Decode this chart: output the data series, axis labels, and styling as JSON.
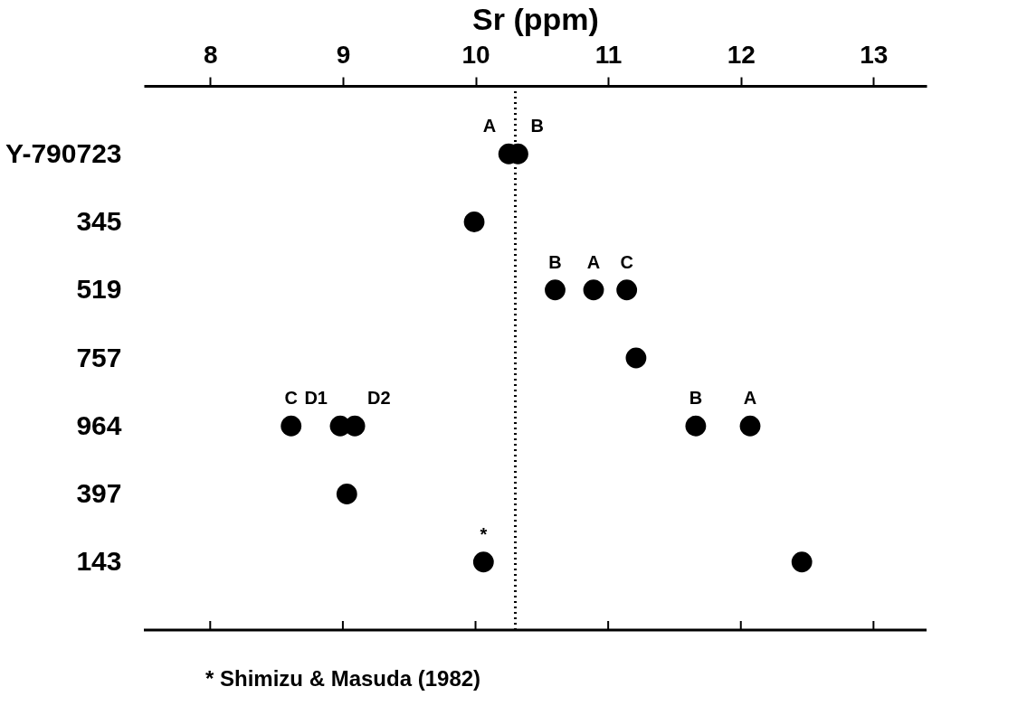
{
  "chart_data": {
    "type": "scatter",
    "orientation": "horizontal",
    "xlabel": "Sr (ppm)",
    "categories": [
      "Y-790723",
      "345",
      "519",
      "757",
      "964",
      "397",
      "143"
    ],
    "xlim": [
      7.5,
      13.4
    ],
    "xticks": [
      8,
      9,
      10,
      11,
      12,
      13
    ],
    "grid": false,
    "marker": "circle",
    "series": [
      {
        "name": "A",
        "color": "#000000",
        "values": [
          10.25,
          null,
          10.89,
          null,
          12.07,
          null,
          null
        ]
      },
      {
        "name": "B",
        "color": "#000000",
        "values": [
          10.32,
          null,
          10.6,
          null,
          11.66,
          null,
          null
        ]
      },
      {
        "name": "C",
        "color": "#000000",
        "values": [
          null,
          null,
          11.14,
          null,
          8.61,
          null,
          null
        ]
      },
      {
        "name": "D1",
        "color": "#000000",
        "values": [
          null,
          null,
          null,
          null,
          8.98,
          null,
          null
        ]
      },
      {
        "name": "D2",
        "color": "#000000",
        "values": [
          null,
          null,
          null,
          null,
          9.09,
          null,
          null
        ]
      },
      {
        "name": "*",
        "color": "#000000",
        "values": [
          null,
          null,
          null,
          null,
          null,
          null,
          10.06
        ]
      },
      {
        "color": "#000000",
        "values": [
          null,
          9.99,
          null,
          11.21,
          null,
          9.03,
          12.46
        ]
      }
    ],
    "ref_lines": [
      {
        "axis": "x",
        "value": 10.3,
        "color": "#000000",
        "line_style": "dotted"
      }
    ],
    "annotations": [
      "* Shimizu & Masuda (1982)"
    ]
  }
}
